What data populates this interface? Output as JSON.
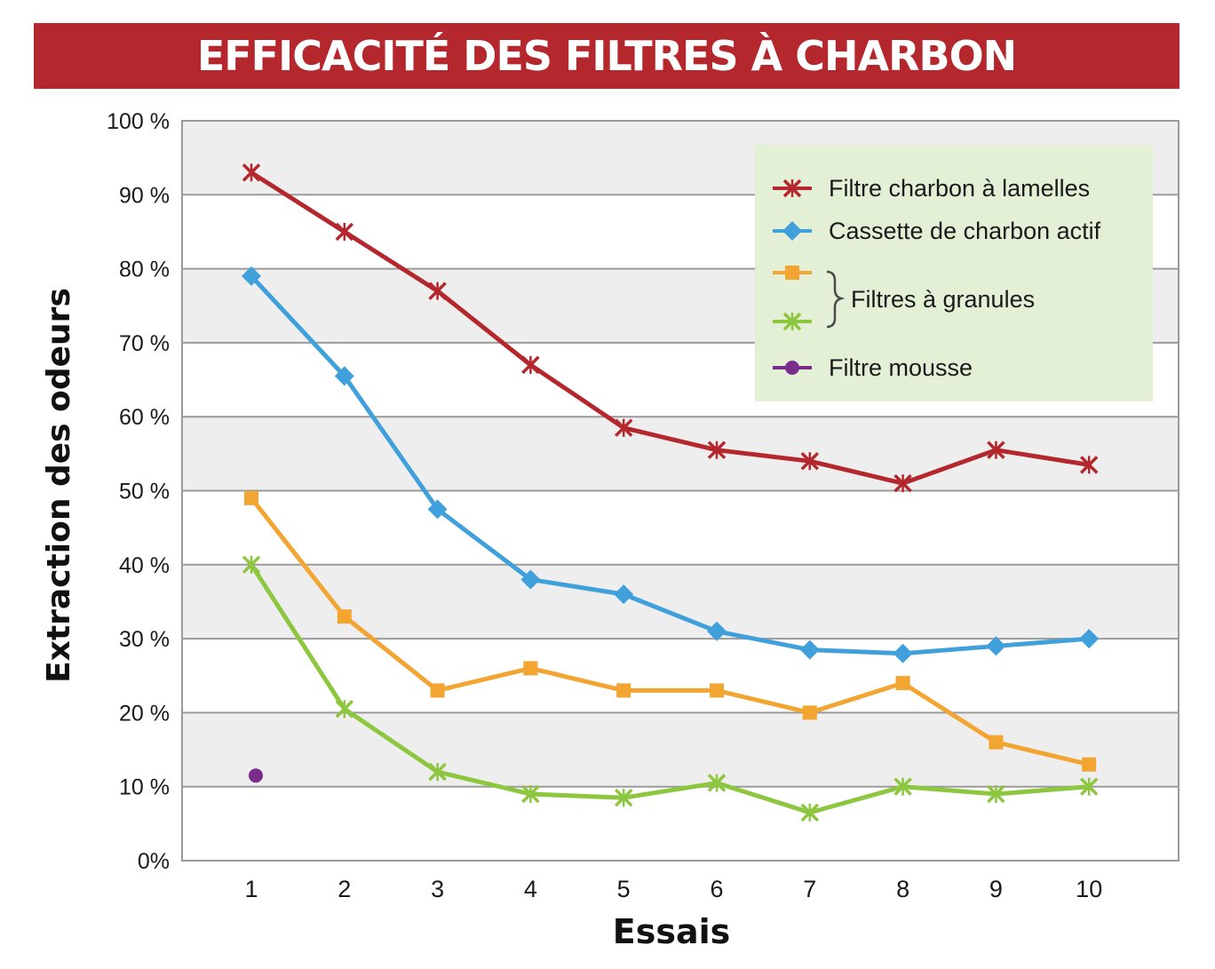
{
  "chart_data": {
    "type": "line",
    "title": "EFFICACITÉ DES FILTRES À CHARBON",
    "xlabel": "Essais",
    "ylabel": "Extraction des odeurs",
    "x": [
      1,
      2,
      3,
      4,
      5,
      6,
      7,
      8,
      9,
      10
    ],
    "x_tick_labels": [
      "1",
      "2",
      "3",
      "4",
      "5",
      "6",
      "7",
      "8",
      "9",
      "10"
    ],
    "y_tick_labels": [
      "0%",
      "10 %",
      "20 %",
      "30 %",
      "40 %",
      "50 %",
      "60 %",
      "70 %",
      "80 %",
      "90 %",
      "100 %"
    ],
    "ylim": [
      0,
      100
    ],
    "grid": true,
    "legend_position": "top-right",
    "legend_group_label": "Filtres à granules",
    "series": [
      {
        "name": "Filtre charbon à lamelles",
        "color": "#b3272d",
        "marker": "x-mark",
        "values": [
          93,
          85,
          77,
          67,
          58.5,
          55.5,
          54,
          51,
          55.5,
          53.5
        ]
      },
      {
        "name": "Cassette de charbon actif",
        "color": "#3fa0db",
        "marker": "diamond",
        "values": [
          79,
          65.5,
          47.5,
          38,
          36,
          31,
          28.5,
          28,
          29,
          30
        ]
      },
      {
        "name": "",
        "color": "#f2a531",
        "marker": "square",
        "values": [
          49,
          33,
          23,
          26,
          23,
          23,
          20,
          24,
          16,
          13
        ]
      },
      {
        "name": "",
        "color": "#8dc63f",
        "marker": "x-mark",
        "values": [
          40,
          20.5,
          12,
          9,
          8.5,
          10.5,
          6.5,
          10,
          9,
          10
        ]
      },
      {
        "name": "Filtre mousse",
        "color": "#7b2d8e",
        "marker": "circle",
        "points": [
          {
            "x": 1,
            "y": 11.5
          }
        ]
      }
    ]
  }
}
